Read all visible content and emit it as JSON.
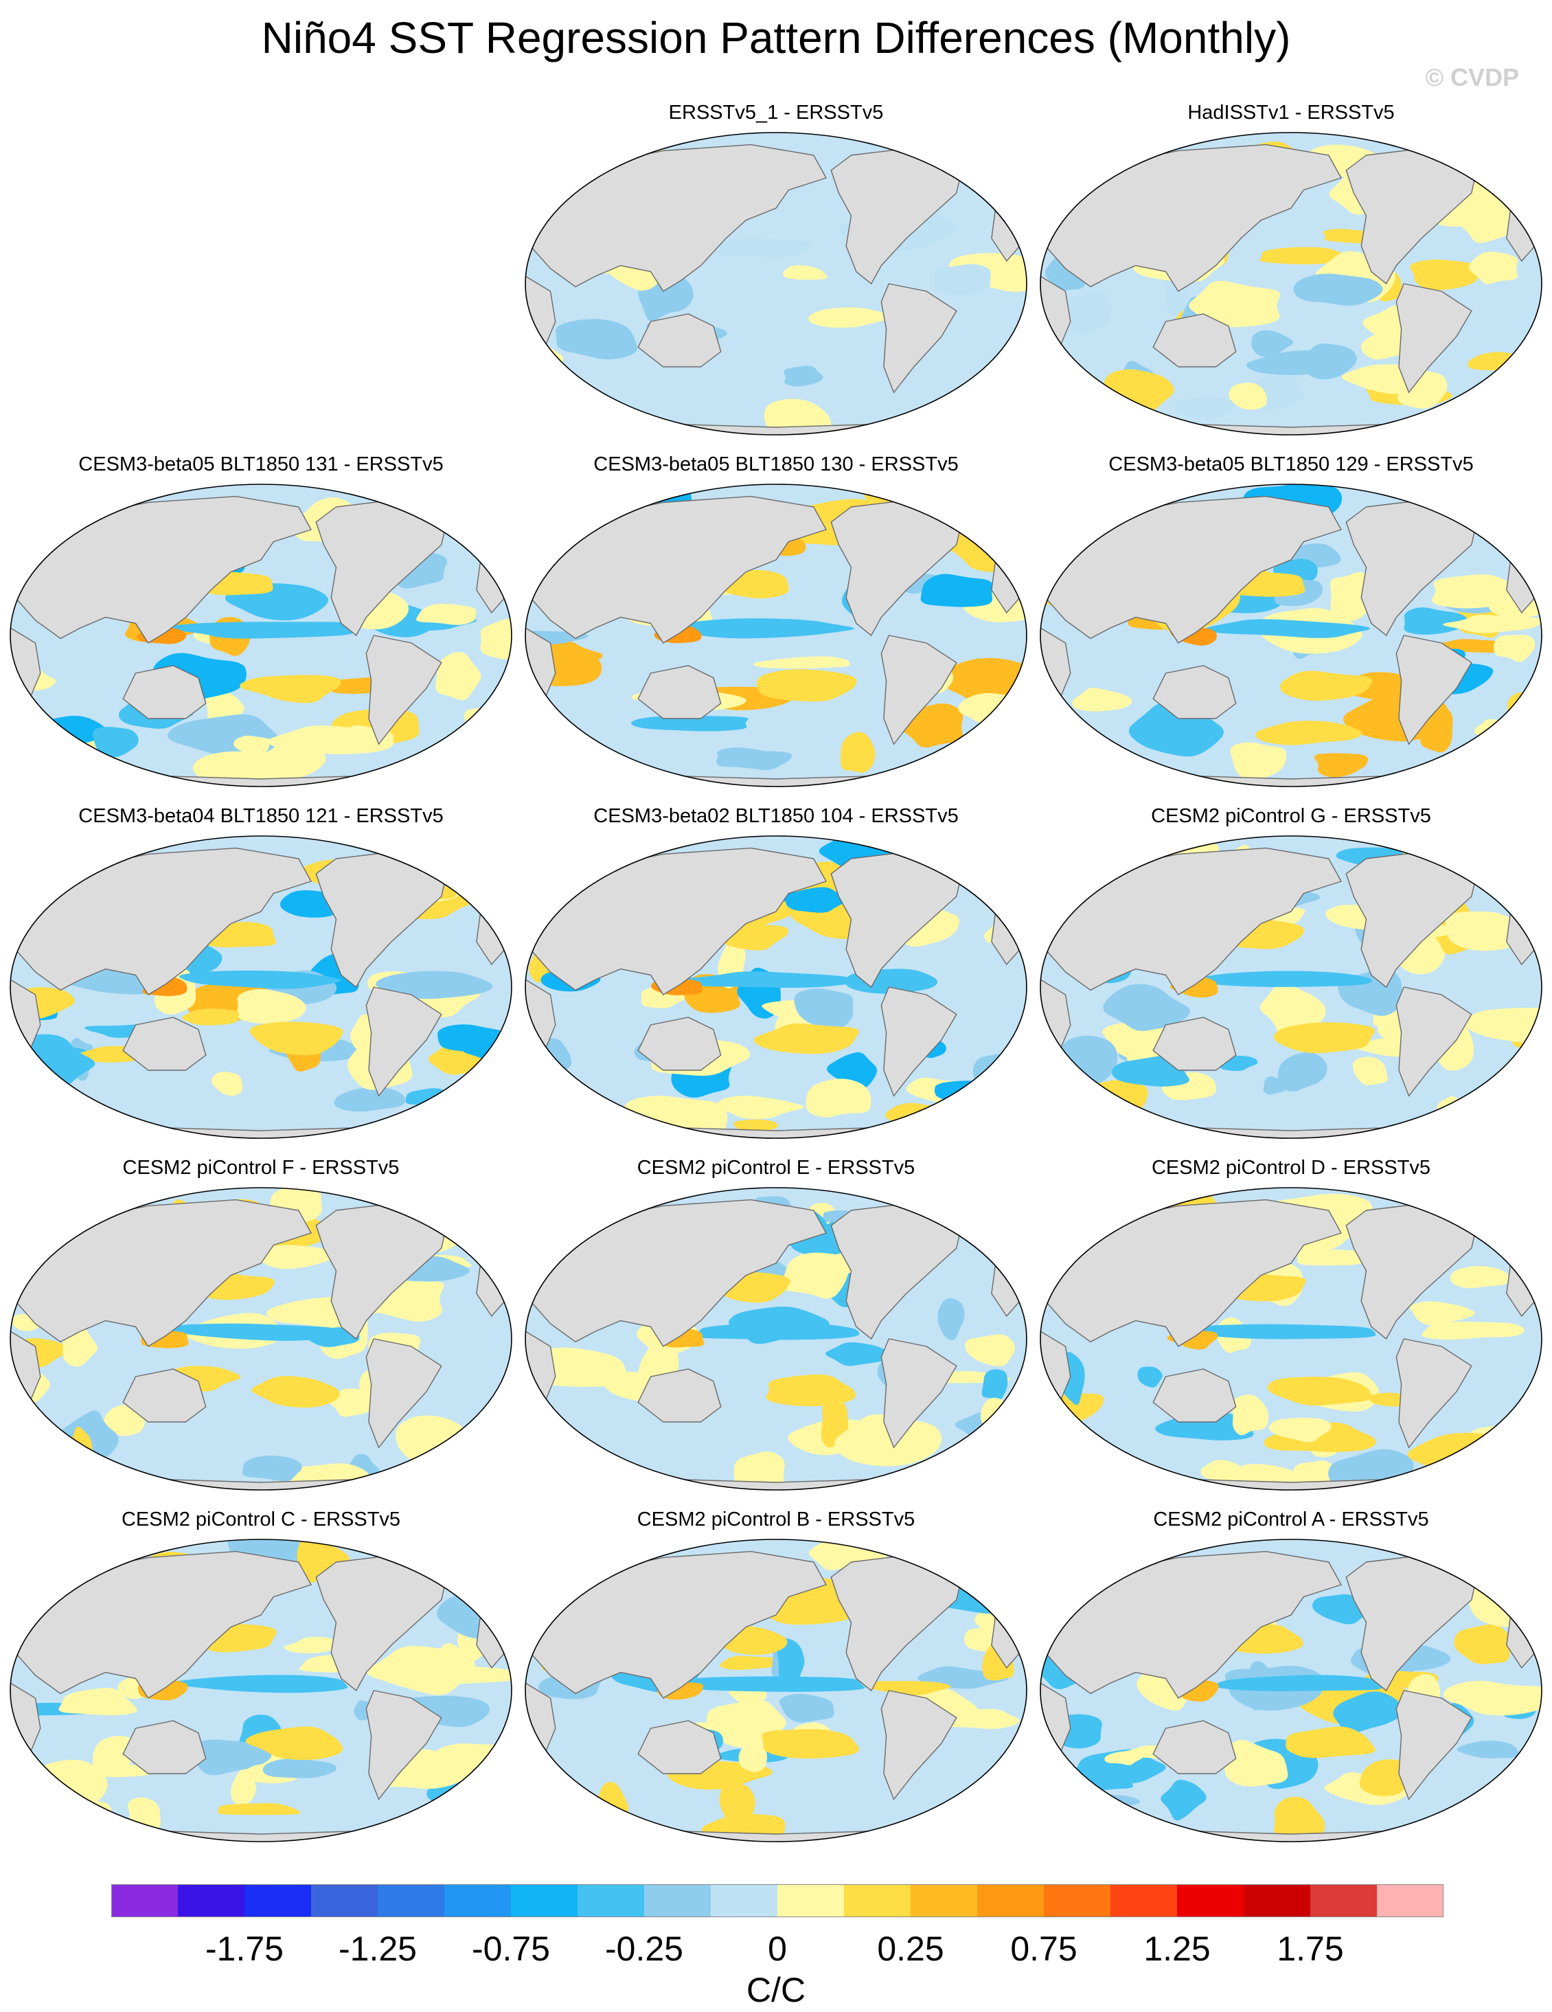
{
  "title": "Niño4 SST Regression Pattern Differences (Monthly)",
  "copyright": "© CVDP",
  "chart_data": {
    "type": "map-panels",
    "title": "Niño4 SST Regression Pattern Differences (Monthly)",
    "projection": "Robinson (Pacific-centered)",
    "panels": [
      {
        "row": 0,
        "col": 1,
        "title": "ERSSTv5_1 - ERSSTv5",
        "pattern": "weak"
      },
      {
        "row": 0,
        "col": 2,
        "title": "HadISSTv1 - ERSSTv5",
        "pattern": "noisy"
      },
      {
        "row": 1,
        "col": 0,
        "title": "CESM3-beta05 BLT1850 131 - ERSSTv5",
        "pattern": "strong"
      },
      {
        "row": 1,
        "col": 1,
        "title": "CESM3-beta05 BLT1850 130 - ERSSTv5",
        "pattern": "strong"
      },
      {
        "row": 1,
        "col": 2,
        "title": "CESM3-beta05 BLT1850 129 - ERSSTv5",
        "pattern": "strong"
      },
      {
        "row": 2,
        "col": 0,
        "title": "CESM3-beta04 BLT1850 121 - ERSSTv5",
        "pattern": "strong"
      },
      {
        "row": 2,
        "col": 1,
        "title": "CESM3-beta02 BLT1850 104 - ERSSTv5",
        "pattern": "strong"
      },
      {
        "row": 2,
        "col": 2,
        "title": "CESM2 piControl G - ERSSTv5",
        "pattern": "moderate"
      },
      {
        "row": 3,
        "col": 0,
        "title": "CESM2 piControl F - ERSSTv5",
        "pattern": "moderate"
      },
      {
        "row": 3,
        "col": 1,
        "title": "CESM2 piControl E - ERSSTv5",
        "pattern": "moderate"
      },
      {
        "row": 3,
        "col": 2,
        "title": "CESM2 piControl D - ERSSTv5",
        "pattern": "moderate"
      },
      {
        "row": 4,
        "col": 0,
        "title": "CESM2 piControl C - ERSSTv5",
        "pattern": "moderate"
      },
      {
        "row": 4,
        "col": 1,
        "title": "CESM2 piControl B - ERSSTv5",
        "pattern": "moderate"
      },
      {
        "row": 4,
        "col": 2,
        "title": "CESM2 piControl A - ERSSTv5",
        "pattern": "moderate"
      }
    ],
    "colorbar": {
      "unit": "C/C",
      "tick_labels": [
        "-1.75",
        "-1.25",
        "-0.75",
        "-0.25",
        "0",
        "0.25",
        "0.75",
        "1.25",
        "1.75"
      ],
      "tick_values": [
        -1.75,
        -1.25,
        -0.75,
        -0.25,
        0,
        0.25,
        0.75,
        1.25,
        1.75
      ],
      "colors": [
        "#8a2be2",
        "#3a14e6",
        "#1a2ef5",
        "#3a64dc",
        "#2f7ae6",
        "#2196f3",
        "#11b4f5",
        "#44c2f2",
        "#8fcdee",
        "#bfe1f4",
        "#fff9a6",
        "#ffdd44",
        "#ffbb22",
        "#ff9911",
        "#ff7711",
        "#ff4411",
        "#ee0000",
        "#cc0000",
        "#dd3a3a",
        "#ffb2b2"
      ]
    }
  }
}
